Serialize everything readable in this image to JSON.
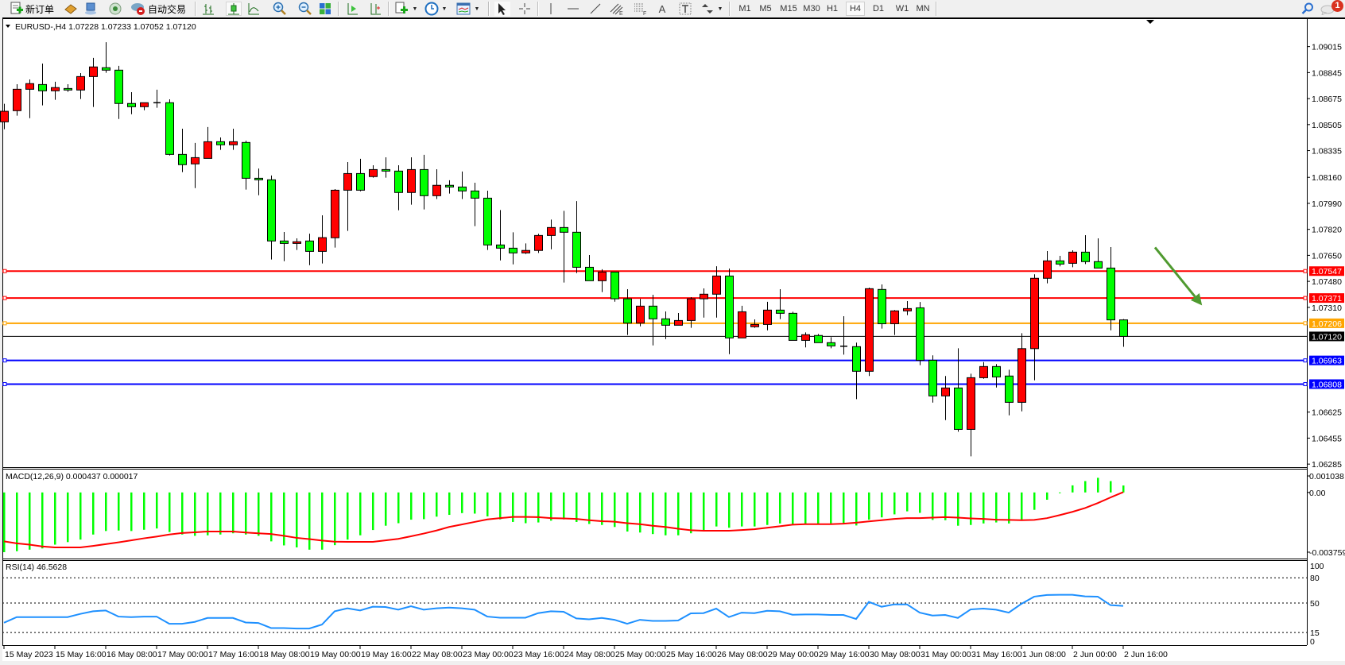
{
  "toolbar": {
    "new_order_label": "新订单",
    "auto_trading_label": "自动交易",
    "timeframes": [
      "M1",
      "M5",
      "M15",
      "M30",
      "H1",
      "H4",
      "D1",
      "W1",
      "MN"
    ],
    "active_timeframe": "H4",
    "notification_count": "1",
    "icons": [
      "new-order-icon",
      "history-book-icon",
      "data-window-icon",
      "signals-icon",
      "auto-trading-icon",
      "bar-chart-icon",
      "candlestick-icon",
      "line-chart-icon",
      "zoom-in-icon",
      "zoom-out-icon",
      "tile-windows-icon",
      "chart-shift-icon",
      "autoscroll-icon",
      "indicators-icon",
      "periods-icon",
      "templates-icon",
      "cursor-icon",
      "crosshair-icon",
      "vertical-line-icon",
      "horizontal-line-icon",
      "trendline-icon",
      "equidistant-channel-icon",
      "fibonacci-icon",
      "text-icon",
      "text-label-icon",
      "arrows-icon",
      "search-icon",
      "chat-icon"
    ]
  },
  "chart": {
    "header": "EURUSD-,H4  1.07228 1.07233 1.07052 1.07120",
    "macd_label": "MACD(12,26,9) 0.000437 0.000017",
    "rsi_label": "RSI(14) 46.5628"
  },
  "chart_data": [
    {
      "type": "candlestick",
      "symbol": "EURUSD-",
      "timeframe": "H4",
      "ohlc_format": [
        "open",
        "high",
        "low",
        "close"
      ],
      "ylim": [
        1.06265,
        1.09195
      ],
      "bull_color": "#ff0000",
      "bear_color": "#00ff00",
      "price_ticks": [
        "1.09015",
        "1.08845",
        "1.08675",
        "1.08505",
        "1.08335",
        "1.08160",
        "1.07990",
        "1.07820",
        "1.07650",
        "1.07480",
        "1.07310",
        "1.06625",
        "1.06455",
        "1.06285"
      ],
      "time_labels": [
        {
          "bar": 0,
          "text": "15 May 2023"
        },
        {
          "bar": 4,
          "text": "15 May 16:00"
        },
        {
          "bar": 8,
          "text": "16 May 08:00"
        },
        {
          "bar": 12,
          "text": "17 May 00:00"
        },
        {
          "bar": 16,
          "text": "17 May 16:00"
        },
        {
          "bar": 20,
          "text": "18 May 08:00"
        },
        {
          "bar": 24,
          "text": "19 May 00:00"
        },
        {
          "bar": 28,
          "text": "19 May 16:00"
        },
        {
          "bar": 32,
          "text": "22 May 08:00"
        },
        {
          "bar": 36,
          "text": "23 May 00:00"
        },
        {
          "bar": 40,
          "text": "23 May 16:00"
        },
        {
          "bar": 44,
          "text": "24 May 08:00"
        },
        {
          "bar": 48,
          "text": "25 May 00:00"
        },
        {
          "bar": 52,
          "text": "25 May 16:00"
        },
        {
          "bar": 56,
          "text": "26 May 08:00"
        },
        {
          "bar": 60,
          "text": "29 May 00:00"
        },
        {
          "bar": 64,
          "text": "29 May 16:00"
        },
        {
          "bar": 68,
          "text": "30 May 08:00"
        },
        {
          "bar": 72,
          "text": "31 May 00:00"
        },
        {
          "bar": 76,
          "text": "31 May 16:00"
        },
        {
          "bar": 80,
          "text": "1 Jun 08:00"
        },
        {
          "bar": 84,
          "text": "2 Jun 00:00"
        },
        {
          "bar": 88,
          "text": "2 Jun 16:00"
        }
      ],
      "levels": [
        {
          "price": 1.07547,
          "label": "1.07547",
          "color": "#ff0000"
        },
        {
          "price": 1.07371,
          "label": "1.07371",
          "color": "#ff0000"
        },
        {
          "price": 1.07206,
          "label": "1.07206",
          "color": "#ffa500"
        },
        {
          "price": 1.06963,
          "label": "1.06963",
          "color": "#0000ff"
        },
        {
          "price": 1.06808,
          "label": "1.06808",
          "color": "#0000ff"
        }
      ],
      "bid": {
        "price": 1.0712,
        "label": "1.07120",
        "color": "#000000"
      },
      "arrow": {
        "from_bar": 90.5,
        "from_price": 1.07702,
        "to_bar": 94.2,
        "to_price": 1.07323,
        "color": "#4f9a2f"
      },
      "candles": [
        [
          1.08523,
          1.08641,
          1.08475,
          1.08592
        ],
        [
          1.08596,
          1.08769,
          1.08563,
          1.08736
        ],
        [
          1.08736,
          1.088,
          1.08547,
          1.08773
        ],
        [
          1.08767,
          1.08904,
          1.08631,
          1.08726
        ],
        [
          1.08726,
          1.08785,
          1.08667,
          1.08747
        ],
        [
          1.08741,
          1.08769,
          1.08719,
          1.08731
        ],
        [
          1.08731,
          1.08842,
          1.08672,
          1.08819
        ],
        [
          1.08819,
          1.08941,
          1.0862,
          1.08882
        ],
        [
          1.08877,
          1.09044,
          1.08844,
          1.08861
        ],
        [
          1.08861,
          1.08889,
          1.08542,
          1.08643
        ],
        [
          1.08643,
          1.08717,
          1.08573,
          1.08622
        ],
        [
          1.08622,
          1.08648,
          1.08599,
          1.08648
        ],
        [
          1.08648,
          1.08733,
          1.08615,
          1.08648
        ],
        [
          1.08648,
          1.0867,
          1.08303,
          1.0831
        ],
        [
          1.0831,
          1.08478,
          1.08194,
          1.08243
        ],
        [
          1.08248,
          1.08385,
          1.0809,
          1.08289
        ],
        [
          1.08284,
          1.08489,
          1.08284,
          1.08393
        ],
        [
          1.08393,
          1.08421,
          1.0834,
          1.08373
        ],
        [
          1.08373,
          1.08478,
          1.0834,
          1.08393
        ],
        [
          1.08388,
          1.084,
          1.0808,
          1.08154
        ],
        [
          1.08154,
          1.08218,
          1.08043,
          1.08144
        ],
        [
          1.08144,
          1.08172,
          1.07623,
          1.07744
        ],
        [
          1.07744,
          1.07803,
          1.07612,
          1.07728
        ],
        [
          1.07728,
          1.07761,
          1.07685,
          1.07739
        ],
        [
          1.07744,
          1.07792,
          1.07586,
          1.07676
        ],
        [
          1.07676,
          1.07912,
          1.07597,
          1.07766
        ],
        [
          1.07765,
          1.08083,
          1.07701,
          1.08076
        ],
        [
          1.08076,
          1.0826,
          1.0781,
          1.08185
        ],
        [
          1.08185,
          1.08281,
          1.08069,
          1.08076
        ],
        [
          1.08165,
          1.08239,
          1.08158,
          1.08211
        ],
        [
          1.08211,
          1.08291,
          1.08158,
          1.08201
        ],
        [
          1.08201,
          1.08239,
          1.07945,
          1.08061
        ],
        [
          1.08061,
          1.08291,
          1.07981,
          1.08211
        ],
        [
          1.08211,
          1.08307,
          1.0795,
          1.0804
        ],
        [
          1.0804,
          1.08213,
          1.08018,
          1.08108
        ],
        [
          1.08108,
          1.08141,
          1.08054,
          1.08097
        ],
        [
          1.08097,
          1.08198,
          1.08018,
          1.08071
        ],
        [
          1.08071,
          1.08125,
          1.07841,
          1.08024
        ],
        [
          1.08024,
          1.08073,
          1.07685,
          1.07718
        ],
        [
          1.07718,
          1.07946,
          1.07617,
          1.07697
        ],
        [
          1.07697,
          1.07801,
          1.07591,
          1.07666
        ],
        [
          1.07666,
          1.07728,
          1.07659,
          1.07682
        ],
        [
          1.07682,
          1.07791,
          1.07666,
          1.0778
        ],
        [
          1.0778,
          1.07884,
          1.0769,
          1.07832
        ],
        [
          1.07832,
          1.07941,
          1.07472,
          1.07801
        ],
        [
          1.07801,
          1.08005,
          1.07534,
          1.07572
        ],
        [
          1.07572,
          1.07652,
          1.07484,
          1.07484
        ],
        [
          1.07484,
          1.07559,
          1.0741,
          1.07541
        ],
        [
          1.07541,
          1.07541,
          1.07347,
          1.07366
        ],
        [
          1.07366,
          1.07429,
          1.07129,
          1.07207
        ],
        [
          1.07207,
          1.07366,
          1.07186,
          1.07318
        ],
        [
          1.07318,
          1.07392,
          1.07061,
          1.07235
        ],
        [
          1.07235,
          1.07283,
          1.07103,
          1.07193
        ],
        [
          1.07193,
          1.07273,
          1.07193,
          1.07224
        ],
        [
          1.07224,
          1.07377,
          1.07176,
          1.07366
        ],
        [
          1.07366,
          1.07434,
          1.07243,
          1.07396
        ],
        [
          1.07396,
          1.07579,
          1.07243,
          1.07515
        ],
        [
          1.07515,
          1.07564,
          1.07004,
          1.0711
        ],
        [
          1.0711,
          1.0732,
          1.0711,
          1.07281
        ],
        [
          1.07183,
          1.07231,
          1.07176,
          1.07198
        ],
        [
          1.07198,
          1.07346,
          1.0716,
          1.07292
        ],
        [
          1.07292,
          1.07429,
          1.07233,
          1.07271
        ],
        [
          1.07271,
          1.07281,
          1.07094,
          1.07094
        ],
        [
          1.07094,
          1.07146,
          1.07048,
          1.07131
        ],
        [
          1.07126,
          1.07136,
          1.07079,
          1.07079
        ],
        [
          1.07079,
          1.07115,
          1.07042,
          1.07058
        ],
        [
          1.07056,
          1.07252,
          1.07001,
          1.07056
        ],
        [
          1.07053,
          1.07079,
          1.0671,
          1.06892
        ],
        [
          1.06892,
          1.07439,
          1.06861,
          1.07432
        ],
        [
          1.07427,
          1.0746,
          1.07171,
          1.07203
        ],
        [
          1.07203,
          1.07292,
          1.07129,
          1.07287
        ],
        [
          1.07287,
          1.07351,
          1.07259,
          1.07302
        ],
        [
          1.07307,
          1.07345,
          1.06932,
          1.06964
        ],
        [
          1.06964,
          1.06996,
          1.06687,
          1.06731
        ],
        [
          1.06731,
          1.06861,
          1.06573,
          1.06783
        ],
        [
          1.06783,
          1.07042,
          1.06497,
          1.06512
        ],
        [
          1.06512,
          1.06876,
          1.06336,
          1.0685
        ],
        [
          1.0685,
          1.06952,
          1.06843,
          1.06923
        ],
        [
          1.06923,
          1.06939,
          1.06786,
          1.06855
        ],
        [
          1.06861,
          1.06902,
          1.06604,
          1.06689
        ],
        [
          1.06689,
          1.07141,
          1.0663,
          1.0704
        ],
        [
          1.0704,
          1.07526,
          1.06833,
          1.075
        ],
        [
          1.075,
          1.07678,
          1.07467,
          1.07614
        ],
        [
          1.07614,
          1.07647,
          1.07578,
          1.07593
        ],
        [
          1.07598,
          1.07683,
          1.07572,
          1.07671
        ],
        [
          1.07671,
          1.07782,
          1.07593,
          1.07609
        ],
        [
          1.07609,
          1.07761,
          1.07567,
          1.07567
        ],
        [
          1.07567,
          1.07704,
          1.0716,
          1.07228
        ],
        [
          1.07228,
          1.07233,
          1.07052,
          1.0712
        ]
      ]
    },
    {
      "type": "bar+line",
      "indicator": "MACD(12,26,9)",
      "ylim": [
        -0.00416,
        0.00144
      ],
      "ticks": [
        "0.001038",
        "0.00",
        "-0.003759"
      ],
      "histogram_color": "#00ff00",
      "signal_color": "#ff0000",
      "macd": [
        -0.003759,
        -0.0037,
        -0.003602,
        -0.003523,
        -0.003285,
        -0.003126,
        -0.002968,
        -0.00265,
        -0.002428,
        -0.002397,
        -0.002428,
        -0.002349,
        -0.002269,
        -0.002492,
        -0.00265,
        -0.00273,
        -0.002698,
        -0.00265,
        -0.002571,
        -0.00265,
        -0.00273,
        -0.003079,
        -0.003333,
        -0.00346,
        -0.003602,
        -0.003602,
        -0.003317,
        -0.002968,
        -0.002698,
        -0.002365,
        -0.002095,
        -0.001936,
        -0.001714,
        -0.001682,
        -0.001524,
        -0.001412,
        -0.001301,
        -0.001333,
        -0.001508,
        -0.001698,
        -0.001857,
        -0.001936,
        -0.001889,
        -0.001777,
        -0.001698,
        -0.001857,
        -0.001984,
        -0.002047,
        -0.002174,
        -0.00246,
        -0.002523,
        -0.002619,
        -0.002698,
        -0.002698,
        -0.002571,
        -0.002397,
        -0.002142,
        -0.002222,
        -0.002142,
        -0.002142,
        -0.002047,
        -0.001952,
        -0.001984,
        -0.001984,
        -0.001984,
        -0.001952,
        -0.001952,
        -0.002079,
        -0.001714,
        -0.001571,
        -0.001381,
        -0.00119,
        -0.001285,
        -0.00173,
        -0.001746,
        -0.002095,
        -0.002047,
        -0.001952,
        -0.001889,
        -0.001952,
        -0.00173,
        -0.001095,
        -0.00046,
        -3.2e-05,
        0.000444,
        0.000714,
        0.00092,
        0.000714,
        0.000437
      ],
      "signal": [
        -0.003079,
        -0.003206,
        -0.003285,
        -0.003396,
        -0.00346,
        -0.00346,
        -0.00346,
        -0.003364,
        -0.003253,
        -0.003142,
        -0.003015,
        -0.002888,
        -0.002777,
        -0.00265,
        -0.002555,
        -0.002507,
        -0.00246,
        -0.00246,
        -0.00246,
        -0.002523,
        -0.002571,
        -0.002619,
        -0.00273,
        -0.002857,
        -0.002936,
        -0.003031,
        -0.003095,
        -0.003111,
        -0.003111,
        -0.003111,
        -0.003015,
        -0.00292,
        -0.002761,
        -0.002587,
        -0.002397,
        -0.002174,
        -0.002015,
        -0.001857,
        -0.001698,
        -0.001619,
        -0.001539,
        -0.001539,
        -0.001555,
        -0.001619,
        -0.001635,
        -0.001666,
        -0.001746,
        -0.001809,
        -0.001841,
        -0.001936,
        -0.002,
        -0.002095,
        -0.002174,
        -0.002285,
        -0.002381,
        -0.002412,
        -0.002412,
        -0.002412,
        -0.002365,
        -0.002317,
        -0.002222,
        -0.002127,
        -0.002031,
        -0.002,
        -0.002,
        -0.002,
        -0.001968,
        -0.001904,
        -0.001825,
        -0.001746,
        -0.001666,
        -0.001619,
        -0.001619,
        -0.001587,
        -0.001555,
        -0.001587,
        -0.001635,
        -0.001666,
        -0.001714,
        -0.00173,
        -0.001746,
        -0.00173,
        -0.001619,
        -0.001428,
        -0.001222,
        -0.000984,
        -0.000667,
        -0.000317,
        1.7e-05
      ]
    },
    {
      "type": "line",
      "indicator": "RSI(14)",
      "ylim": [
        0,
        100
      ],
      "ticks": [
        "100",
        "80",
        "50",
        "15",
        "0"
      ],
      "levels": [
        80,
        50,
        15
      ],
      "color": "#1e90ff",
      "values": [
        26.6,
        33.3,
        33.3,
        33.3,
        33.3,
        33.3,
        37.1,
        40.2,
        41.2,
        33.9,
        33.3,
        33.9,
        33.9,
        25.4,
        25.4,
        27.6,
        32.3,
        32.3,
        32.3,
        26.9,
        26.3,
        20.3,
        20.3,
        19.7,
        19.7,
        24.4,
        40.2,
        43.7,
        41.2,
        45.6,
        45.3,
        42.1,
        46.2,
        42.1,
        43.7,
        44.6,
        43.7,
        42.1,
        33.9,
        32.6,
        32.6,
        32.6,
        38.0,
        40.2,
        39.6,
        31.7,
        30.7,
        32.3,
        30.1,
        25.4,
        30.1,
        28.8,
        28.8,
        29.2,
        37.7,
        38.0,
        43.4,
        33.3,
        38.6,
        38.0,
        40.8,
        40.2,
        36.1,
        36.4,
        36.4,
        35.8,
        35.8,
        31.1,
        51.3,
        45.6,
        48.4,
        48.4,
        38.6,
        35.2,
        35.8,
        32.3,
        42.4,
        43.4,
        42.1,
        38.6,
        49.1,
        57.6,
        59.5,
        59.8,
        59.8,
        57.9,
        57.6,
        47.5,
        46.56
      ]
    }
  ]
}
